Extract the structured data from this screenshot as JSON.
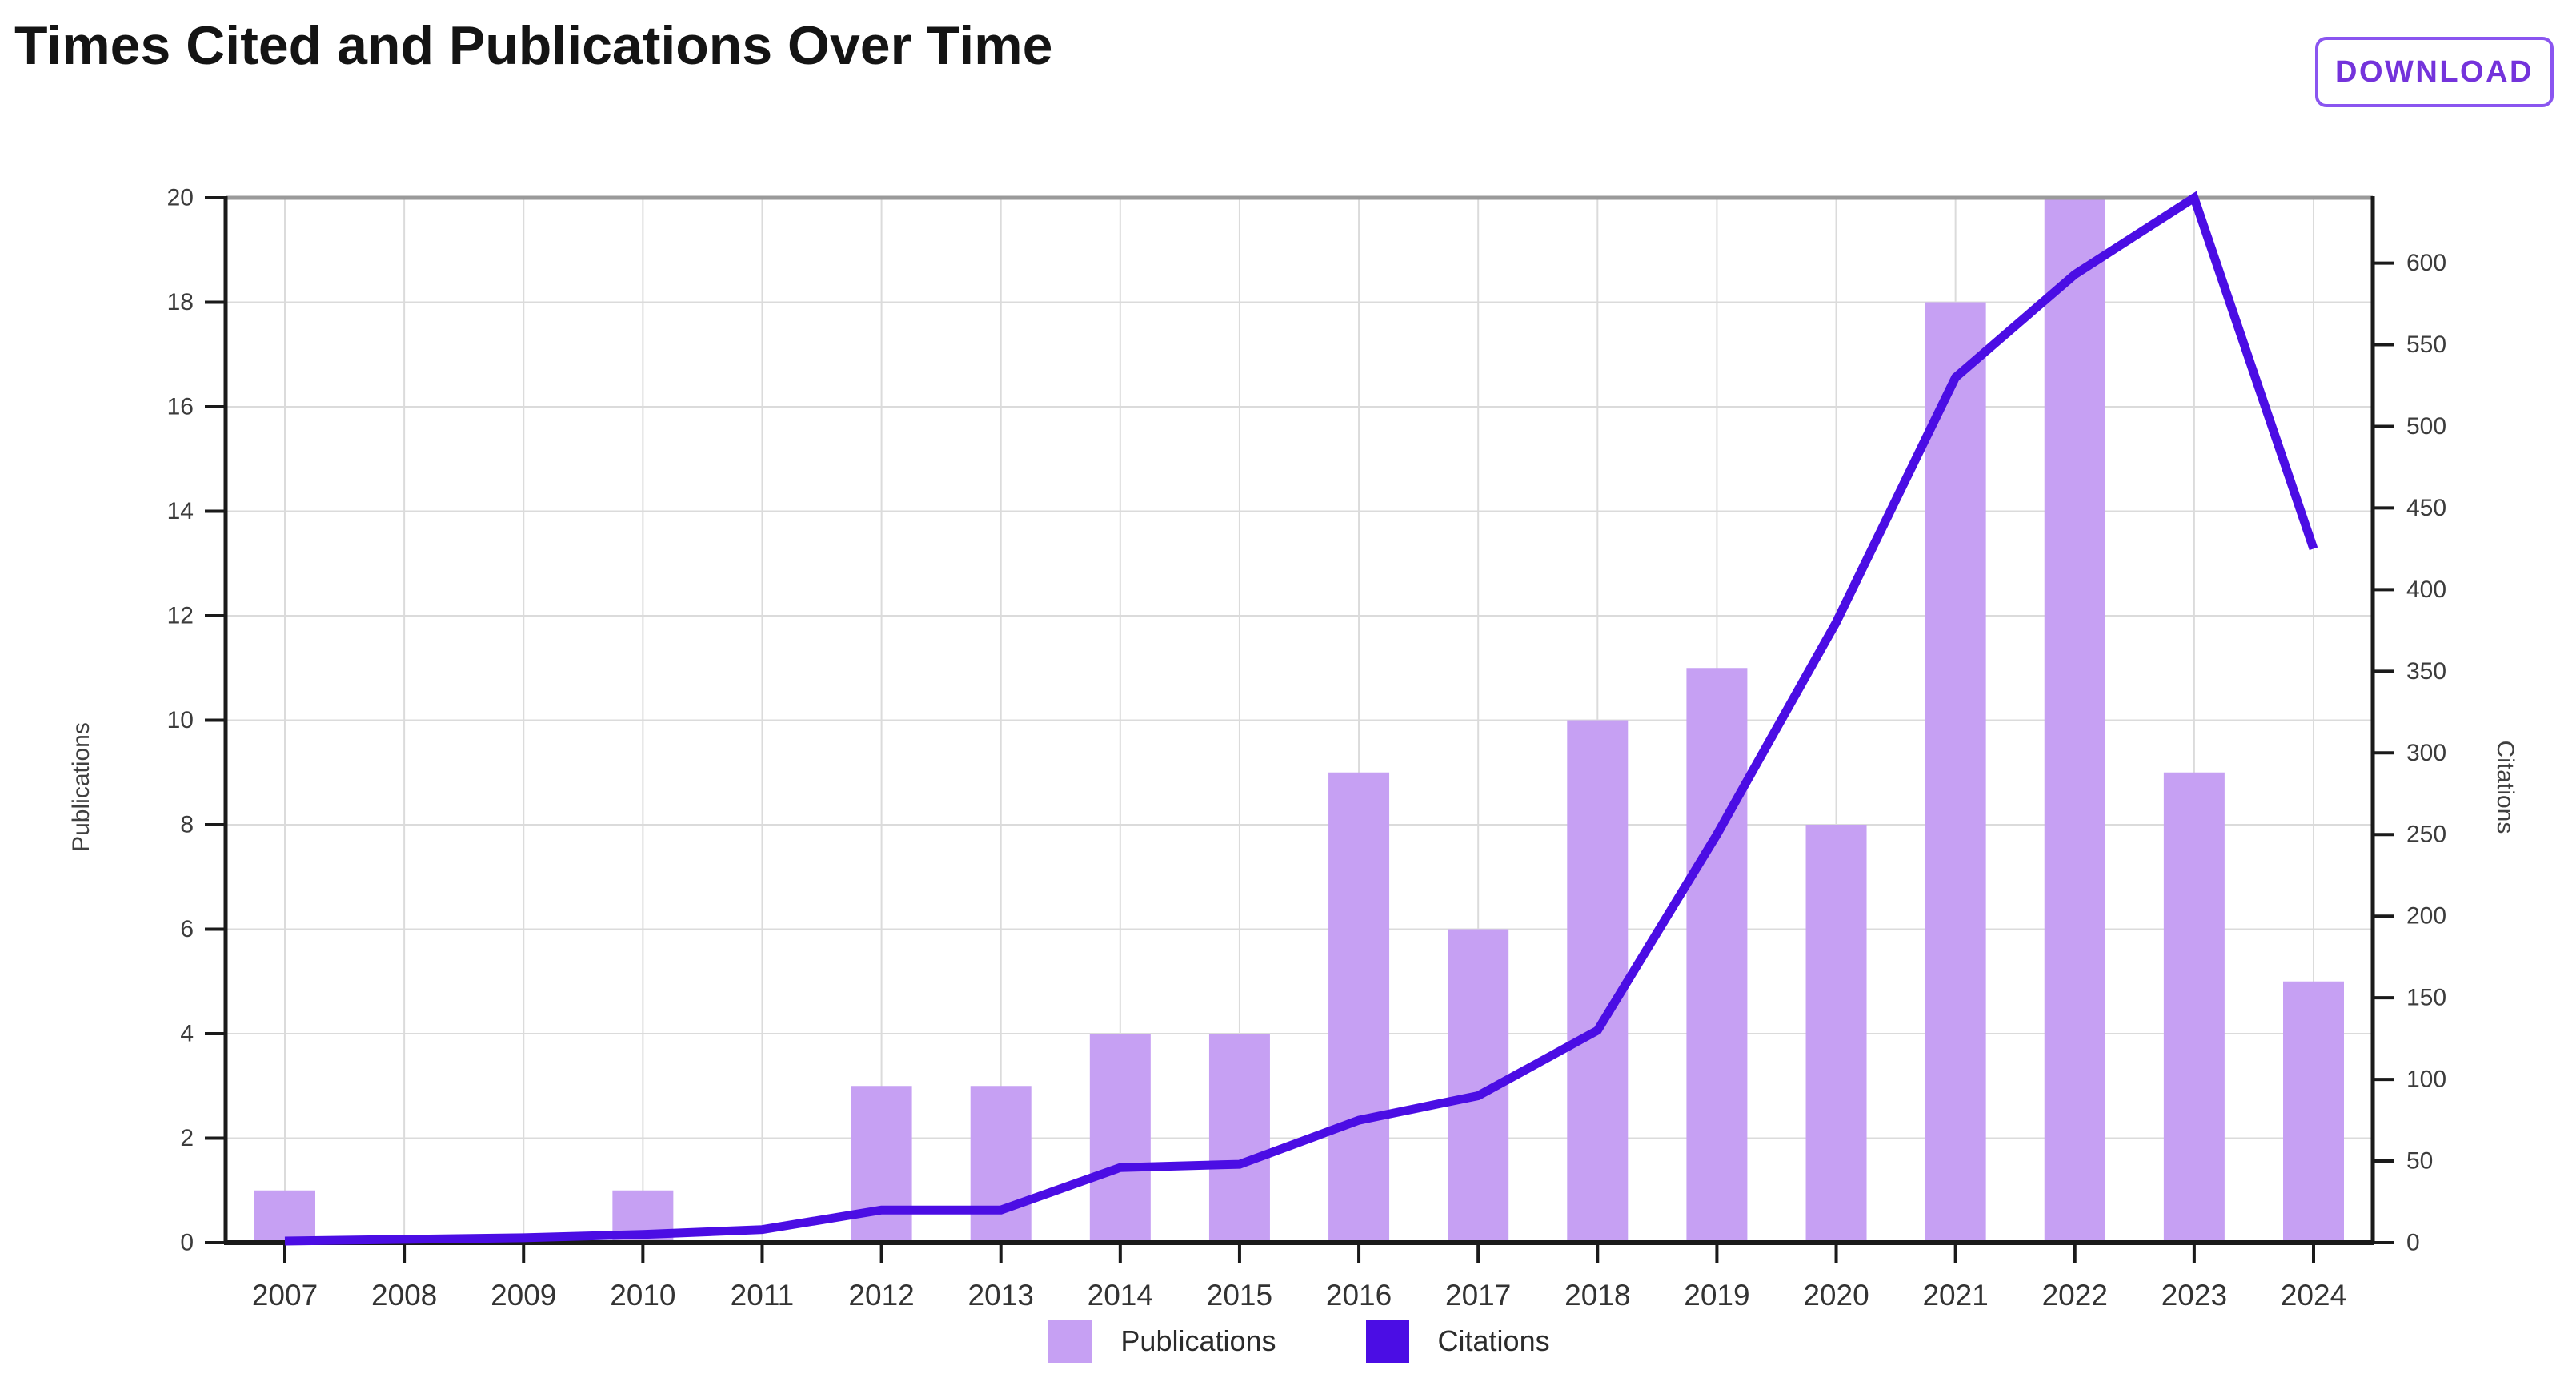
{
  "header": {
    "title": "Times Cited and Publications Over Time",
    "download_label": "DOWNLOAD"
  },
  "colors": {
    "bar": "#C6A0F3",
    "line": "#4B0DE4",
    "grid": "#DBDBDB",
    "top_spine": "#9A9A9A",
    "axis": "#1A1A1A",
    "tick_label": "#3C3C3C",
    "year_label": "#333333",
    "button_text": "#7433DB",
    "button_border": "#8A55F0"
  },
  "chart_data": {
    "type": "combo",
    "title": "Times Cited and Publications Over Time",
    "categories": [
      "2007",
      "2008",
      "2009",
      "2010",
      "2011",
      "2012",
      "2013",
      "2014",
      "2015",
      "2016",
      "2017",
      "2018",
      "2019",
      "2020",
      "2021",
      "2022",
      "2023",
      "2024"
    ],
    "series": [
      {
        "name": "Publications",
        "type": "bar",
        "axis": "left",
        "values": [
          1,
          0,
          0,
          1,
          0,
          3,
          3,
          4,
          4,
          9,
          6,
          10,
          11,
          8,
          18,
          20,
          9,
          5
        ]
      },
      {
        "name": "Citations",
        "type": "line",
        "axis": "right",
        "values": [
          1,
          2,
          3,
          5,
          8,
          20,
          20,
          46,
          48,
          75,
          90,
          130,
          250,
          380,
          530,
          593,
          640,
          425
        ]
      }
    ],
    "left_axis": {
      "label": "Publications",
      "min": 0,
      "max": 20,
      "tick_step": 2,
      "ticks": [
        0,
        2,
        4,
        6,
        8,
        10,
        12,
        14,
        16,
        18,
        20
      ]
    },
    "right_axis": {
      "label": "Citations",
      "min": 0,
      "max": 640,
      "tick_step": 50,
      "ticks": [
        0,
        50,
        100,
        150,
        200,
        250,
        300,
        350,
        400,
        450,
        500,
        550,
        600
      ]
    },
    "grid": true,
    "legend_position": "bottom",
    "legend": [
      "Publications",
      "Citations"
    ]
  }
}
